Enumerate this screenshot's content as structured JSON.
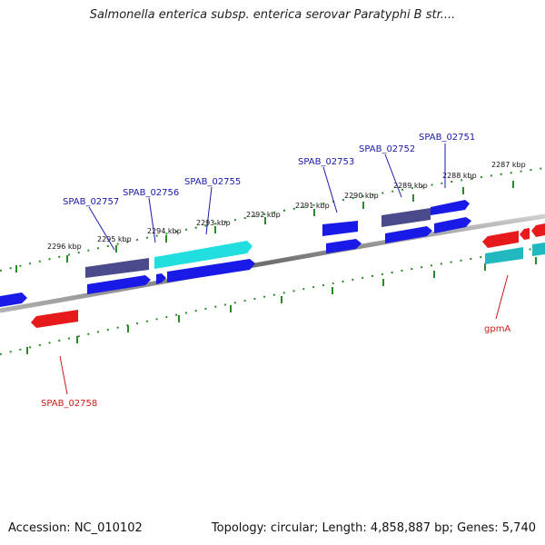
{
  "title": "Salmonella enterica subsp. enterica serovar Paratyphi B str....",
  "footer": {
    "accession": "Accession: NC_010102",
    "summary": "Topology: circular; Length: 4,858,887 bp; Genes: 5,740"
  },
  "colors": {
    "forward_cds": "#1a1ae6",
    "forward_dark": "#4a4a8c",
    "forward_cyan": "#22dede",
    "reverse_red": "#e61a1a",
    "reverse_teal": "#22b8c0",
    "ticks": "#2a8a2a",
    "backbone": "#888888",
    "label_forward": "#1a1aaa",
    "label_reverse": "#cc1a1a"
  },
  "ticks": [
    "2287 kbp",
    "2288 kbp",
    "2289 kbp",
    "2290 kbp",
    "2291 kbp",
    "2292 kbp",
    "2293 kbp",
    "2294 kbp",
    "2295 kbp",
    "2296 kbp"
  ],
  "genes": {
    "forward": [
      "SPAB_02751",
      "SPAB_02752",
      "SPAB_02753",
      "SPAB_02755",
      "SPAB_02756",
      "SPAB_02757"
    ],
    "reverse": [
      "gpmA",
      "SPAB_02758"
    ]
  }
}
